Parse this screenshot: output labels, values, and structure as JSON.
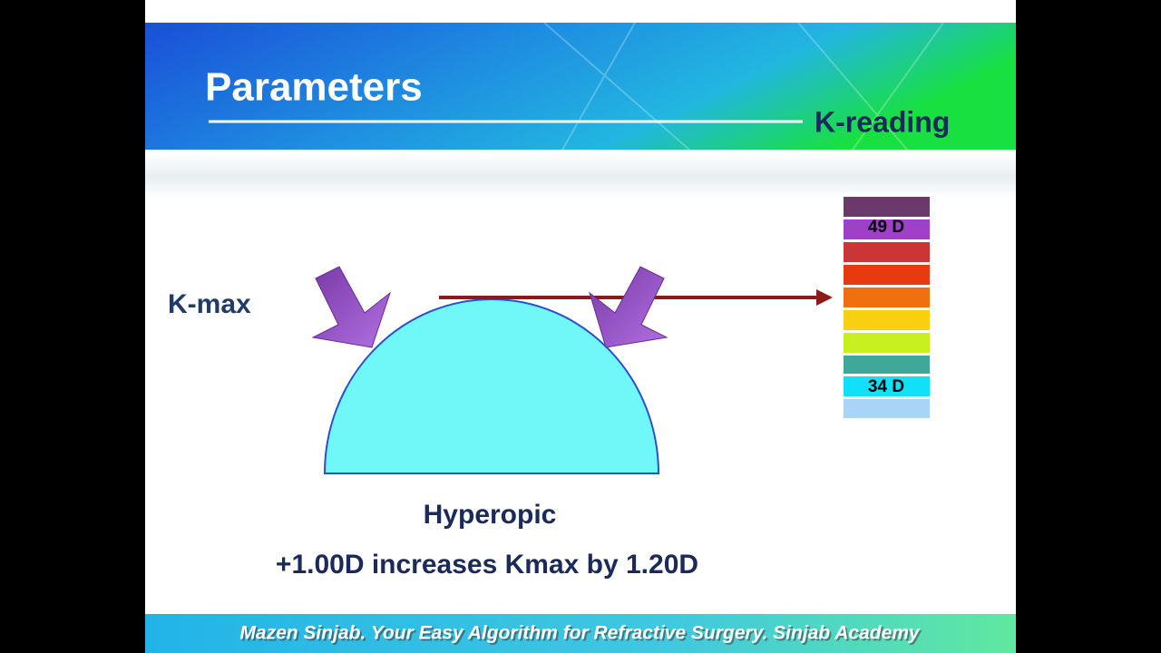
{
  "header": {
    "title": "Parameters",
    "subtitle": "K-reading"
  },
  "diagram": {
    "label": "K-max",
    "scale_labels": [
      "49 D",
      "34 D"
    ]
  },
  "caption": [
    "Hyperopic",
    "+1.00D increases Kmax by 1.20D"
  ],
  "footer": "Mazen Sinjab. Your Easy Algorithm for Refractive Surgery. Sinjab Academy"
}
